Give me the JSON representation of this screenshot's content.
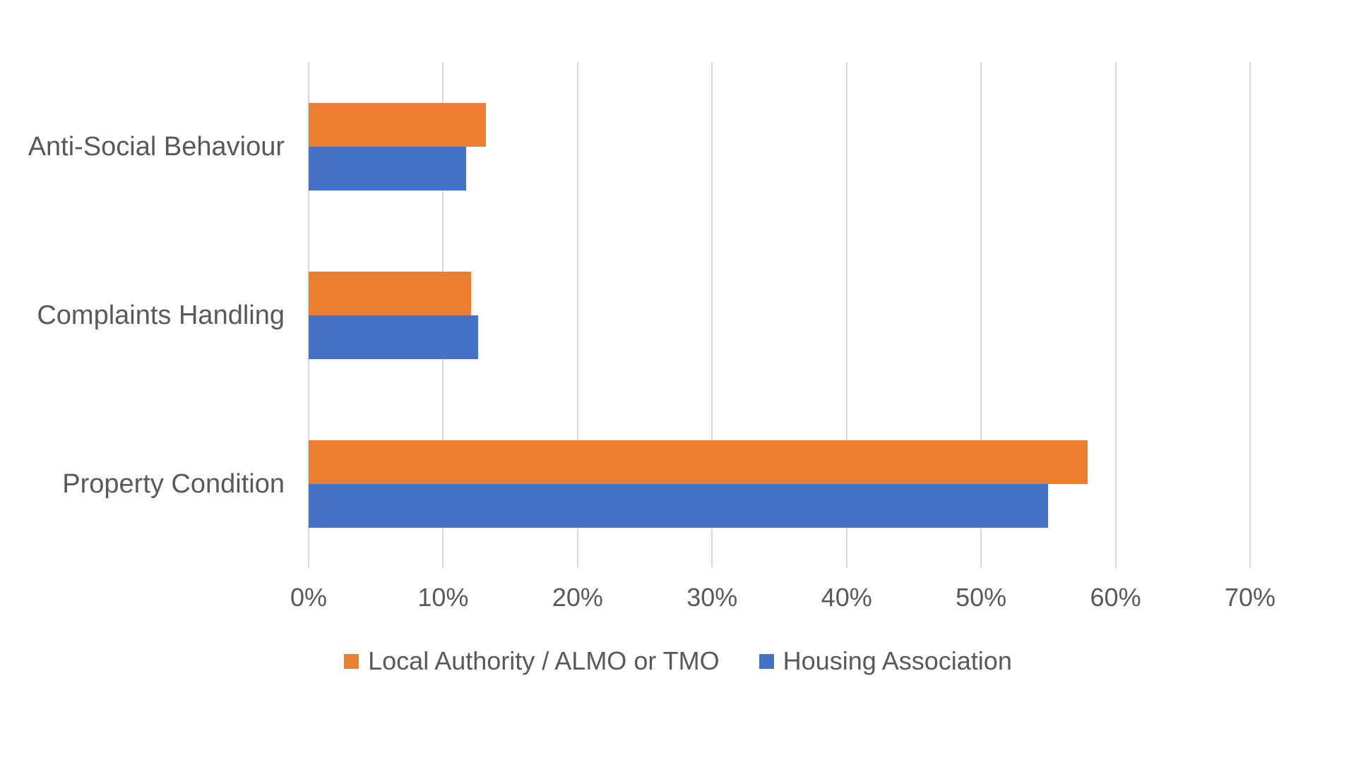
{
  "chart_data": {
    "type": "bar",
    "orientation": "horizontal",
    "title": "",
    "categories": [
      "Anti-Social Behaviour",
      "Complaints Handling",
      "Property Condition"
    ],
    "series": [
      {
        "name": "Local Authority / ALMO or TMO",
        "color": "#ED7D31",
        "values": [
          13.2,
          12.1,
          57.9
        ]
      },
      {
        "name": "Housing Association",
        "color": "#4472C4",
        "values": [
          11.7,
          12.6,
          55.0
        ]
      }
    ],
    "x_ticks": [
      "0%",
      "10%",
      "20%",
      "30%",
      "40%",
      "50%",
      "60%",
      "70%"
    ],
    "x_tick_values": [
      0,
      10,
      20,
      30,
      40,
      50,
      60,
      70
    ],
    "xlabel": "",
    "ylabel": "",
    "xlim": [
      0,
      70
    ],
    "grid": true,
    "legend_position": "bottom",
    "background_color": "#FFFFFF",
    "gridline_color": "#D9D9D9",
    "text_color": "#595959"
  }
}
